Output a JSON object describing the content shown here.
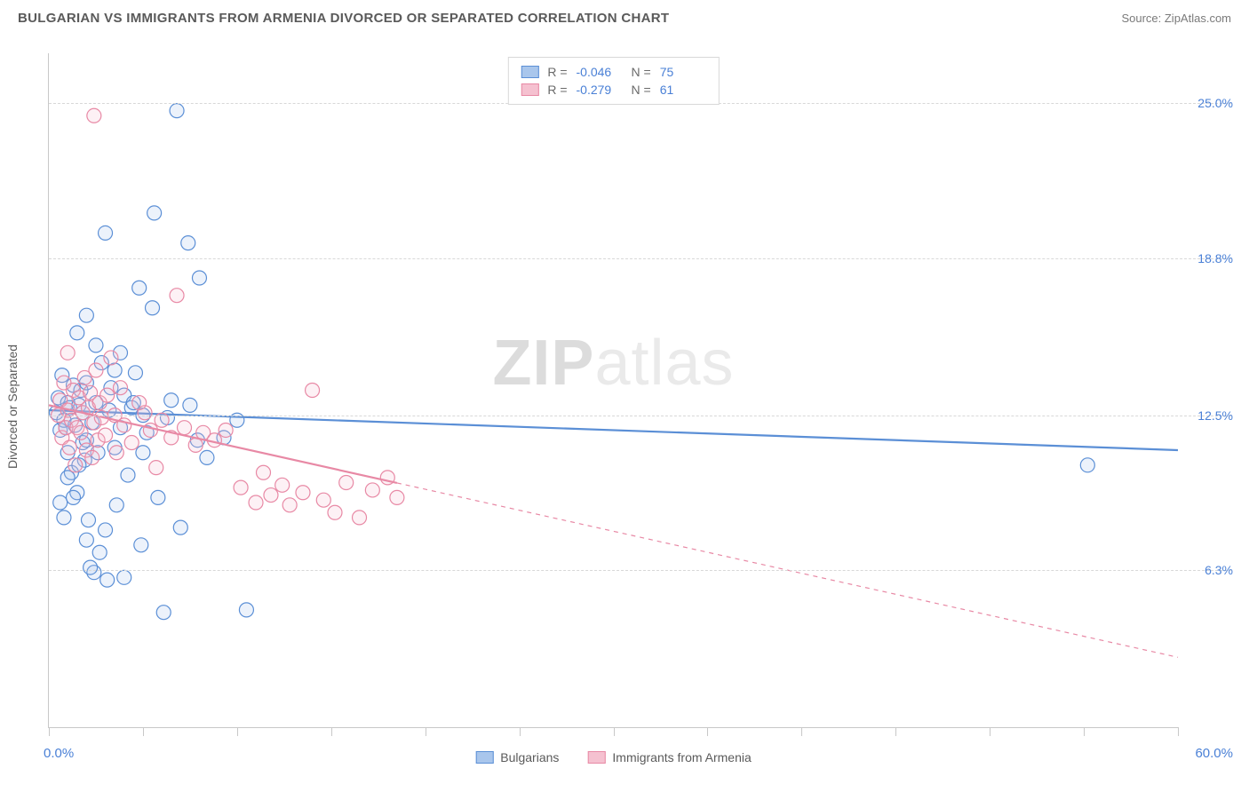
{
  "title": "BULGARIAN VS IMMIGRANTS FROM ARMENIA DIVORCED OR SEPARATED CORRELATION CHART",
  "source": "Source: ZipAtlas.com",
  "ylabel": "Divorced or Separated",
  "watermark_bold": "ZIP",
  "watermark_light": "atlas",
  "chart": {
    "type": "scatter",
    "xlim": [
      0,
      60
    ],
    "ylim": [
      0,
      27
    ],
    "xticks_major": [
      0,
      5,
      10,
      15,
      20,
      25,
      30,
      35,
      40,
      45,
      50,
      55,
      60
    ],
    "yticks": [
      {
        "v": 6.3,
        "label": "6.3%"
      },
      {
        "v": 12.5,
        "label": "12.5%"
      },
      {
        "v": 18.8,
        "label": "18.8%"
      },
      {
        "v": 25.0,
        "label": "25.0%"
      }
    ],
    "xmin_label": "0.0%",
    "xmax_label": "60.0%",
    "background": "#ffffff",
    "grid_color": "#d8d8d8",
    "axis_color": "#c8c8c8",
    "marker_radius": 8,
    "marker_stroke_width": 1.2,
    "marker_fill_opacity": 0.22,
    "line_width": 2.2,
    "series": [
      {
        "key": "bulgarians",
        "label": "Bulgarians",
        "color_stroke": "#5b8fd6",
        "color_fill": "#a9c6ec",
        "R": "-0.046",
        "N": "75",
        "trend": {
          "x1": 0,
          "y1": 12.7,
          "x2": 60,
          "y2": 11.1,
          "solid_until_x": 60
        },
        "points": [
          [
            0.4,
            12.6
          ],
          [
            0.5,
            13.2
          ],
          [
            0.6,
            11.9
          ],
          [
            0.7,
            14.1
          ],
          [
            0.8,
            12.3
          ],
          [
            0.9,
            12.0
          ],
          [
            1.0,
            13.0
          ],
          [
            1.0,
            11.0
          ],
          [
            1.1,
            12.8
          ],
          [
            1.2,
            10.2
          ],
          [
            1.3,
            13.7
          ],
          [
            1.4,
            12.1
          ],
          [
            1.5,
            9.4
          ],
          [
            1.6,
            12.9
          ],
          [
            1.7,
            13.5
          ],
          [
            1.8,
            11.4
          ],
          [
            1.8,
            12.6
          ],
          [
            1.9,
            10.7
          ],
          [
            2.0,
            13.8
          ],
          [
            2.1,
            8.3
          ],
          [
            2.3,
            12.2
          ],
          [
            2.4,
            6.2
          ],
          [
            2.5,
            15.3
          ],
          [
            2.6,
            11.0
          ],
          [
            2.7,
            7.0
          ],
          [
            2.8,
            14.6
          ],
          [
            3.0,
            19.8
          ],
          [
            3.1,
            5.9
          ],
          [
            3.2,
            12.7
          ],
          [
            3.3,
            13.6
          ],
          [
            3.5,
            11.2
          ],
          [
            3.6,
            8.9
          ],
          [
            3.8,
            15.0
          ],
          [
            3.8,
            12.0
          ],
          [
            4.0,
            13.3
          ],
          [
            4.2,
            10.1
          ],
          [
            4.4,
            12.8
          ],
          [
            4.6,
            14.2
          ],
          [
            4.8,
            17.6
          ],
          [
            4.9,
            7.3
          ],
          [
            5.0,
            12.5
          ],
          [
            5.2,
            11.8
          ],
          [
            5.5,
            16.8
          ],
          [
            5.6,
            20.6
          ],
          [
            5.8,
            9.2
          ],
          [
            6.1,
            4.6
          ],
          [
            6.3,
            12.4
          ],
          [
            6.5,
            13.1
          ],
          [
            6.8,
            24.7
          ],
          [
            7.0,
            8.0
          ],
          [
            7.4,
            19.4
          ],
          [
            7.5,
            12.9
          ],
          [
            7.9,
            11.5
          ],
          [
            8.0,
            18.0
          ],
          [
            8.4,
            10.8
          ],
          [
            9.3,
            11.6
          ],
          [
            10.0,
            12.3
          ],
          [
            10.5,
            4.7
          ],
          [
            2.0,
            7.5
          ],
          [
            2.2,
            6.4
          ],
          [
            4.0,
            6.0
          ],
          [
            1.5,
            15.8
          ],
          [
            2.0,
            16.5
          ],
          [
            0.6,
            9.0
          ],
          [
            0.8,
            8.4
          ],
          [
            1.0,
            10.0
          ],
          [
            1.3,
            9.2
          ],
          [
            1.6,
            10.5
          ],
          [
            2.0,
            11.5
          ],
          [
            2.5,
            13.0
          ],
          [
            3.0,
            7.9
          ],
          [
            3.5,
            14.3
          ],
          [
            4.5,
            13.0
          ],
          [
            5.0,
            11.0
          ],
          [
            55.2,
            10.5
          ]
        ]
      },
      {
        "key": "armenia",
        "label": "Immigrants from Armenia",
        "color_stroke": "#e889a5",
        "color_fill": "#f5c1d0",
        "R": "-0.279",
        "N": "61",
        "trend": {
          "x1": 0,
          "y1": 12.9,
          "x2": 60,
          "y2": 2.8,
          "solid_until_x": 18.5
        },
        "points": [
          [
            0.5,
            12.5
          ],
          [
            0.6,
            13.1
          ],
          [
            0.7,
            11.6
          ],
          [
            0.8,
            13.8
          ],
          [
            0.9,
            12.0
          ],
          [
            1.0,
            15.0
          ],
          [
            1.0,
            12.7
          ],
          [
            1.1,
            11.2
          ],
          [
            1.2,
            12.3
          ],
          [
            1.3,
            13.5
          ],
          [
            1.4,
            10.5
          ],
          [
            1.5,
            12.0
          ],
          [
            1.6,
            13.2
          ],
          [
            1.7,
            11.8
          ],
          [
            1.8,
            12.6
          ],
          [
            1.9,
            14.0
          ],
          [
            2.0,
            11.1
          ],
          [
            2.1,
            12.8
          ],
          [
            2.2,
            13.4
          ],
          [
            2.3,
            10.8
          ],
          [
            2.4,
            12.2
          ],
          [
            2.5,
            14.3
          ],
          [
            2.6,
            11.5
          ],
          [
            2.7,
            13.0
          ],
          [
            2.8,
            12.4
          ],
          [
            3.0,
            11.7
          ],
          [
            3.1,
            13.3
          ],
          [
            3.3,
            14.8
          ],
          [
            3.5,
            12.5
          ],
          [
            3.6,
            11.0
          ],
          [
            3.8,
            13.6
          ],
          [
            4.0,
            12.1
          ],
          [
            4.4,
            11.4
          ],
          [
            4.8,
            13.0
          ],
          [
            5.1,
            12.6
          ],
          [
            5.4,
            11.9
          ],
          [
            5.7,
            10.4
          ],
          [
            6.0,
            12.3
          ],
          [
            6.5,
            11.6
          ],
          [
            6.8,
            17.3
          ],
          [
            7.2,
            12.0
          ],
          [
            7.8,
            11.3
          ],
          [
            8.2,
            11.8
          ],
          [
            8.8,
            11.5
          ],
          [
            9.4,
            11.9
          ],
          [
            2.4,
            24.5
          ],
          [
            10.2,
            9.6
          ],
          [
            11.0,
            9.0
          ],
          [
            11.4,
            10.2
          ],
          [
            11.8,
            9.3
          ],
          [
            12.4,
            9.7
          ],
          [
            12.8,
            8.9
          ],
          [
            13.5,
            9.4
          ],
          [
            14.0,
            13.5
          ],
          [
            14.6,
            9.1
          ],
          [
            15.2,
            8.6
          ],
          [
            15.8,
            9.8
          ],
          [
            16.5,
            8.4
          ],
          [
            17.2,
            9.5
          ],
          [
            18.0,
            10.0
          ],
          [
            18.5,
            9.2
          ]
        ]
      }
    ]
  },
  "legend_top": {
    "R_label": "R =",
    "N_label": "N ="
  },
  "legend_bottom": [
    {
      "key": "bulgarians"
    },
    {
      "key": "armenia"
    }
  ]
}
